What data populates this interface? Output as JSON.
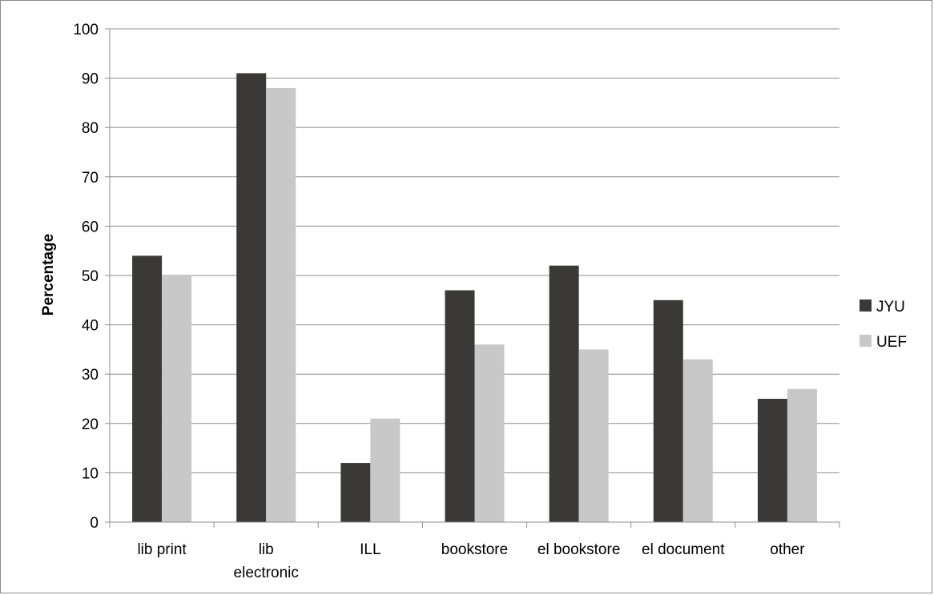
{
  "chart_data": {
    "type": "bar",
    "title": "",
    "xlabel": "",
    "ylabel": "Percentage",
    "ylim": [
      0,
      100
    ],
    "yticks": [
      0,
      10,
      20,
      30,
      40,
      50,
      60,
      70,
      80,
      90,
      100
    ],
    "grid": true,
    "legend_position": "right",
    "categories": [
      "lib print",
      "lib electronic",
      "ILL",
      "bookstore",
      "el bookstore",
      "el document",
      "other"
    ],
    "category_lines": [
      [
        "lib print"
      ],
      [
        "lib",
        "electronic"
      ],
      [
        "ILL"
      ],
      [
        "bookstore"
      ],
      [
        "el bookstore"
      ],
      [
        "el document"
      ],
      [
        "other"
      ]
    ],
    "series": [
      {
        "name": "JYU",
        "color": "#3a3937",
        "values": [
          54,
          91,
          12,
          47,
          52,
          45,
          25
        ]
      },
      {
        "name": "UEF",
        "color": "#c8c8c8",
        "values": [
          50,
          88,
          21,
          36,
          35,
          33,
          27
        ]
      }
    ]
  }
}
